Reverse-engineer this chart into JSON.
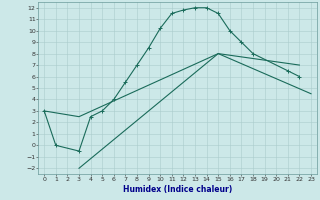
{
  "xlabel": "Humidex (Indice chaleur)",
  "bg_color": "#cce8e8",
  "grid_color": "#aacccc",
  "line_color": "#1a6b5a",
  "xlim": [
    -0.5,
    23.5
  ],
  "ylim": [
    -2.5,
    12.5
  ],
  "xticks": [
    0,
    1,
    2,
    3,
    4,
    5,
    6,
    7,
    8,
    9,
    10,
    11,
    12,
    13,
    14,
    15,
    16,
    17,
    18,
    19,
    20,
    21,
    22,
    23
  ],
  "yticks": [
    -2,
    -1,
    0,
    1,
    2,
    3,
    4,
    5,
    6,
    7,
    8,
    9,
    10,
    11,
    12
  ],
  "line1_x": [
    0,
    1,
    3,
    4,
    5,
    6,
    7,
    8,
    9,
    10,
    11,
    12,
    13,
    14,
    15,
    16,
    17,
    18,
    21,
    22
  ],
  "line1_y": [
    3,
    0,
    -0.5,
    2.5,
    3.0,
    4.0,
    5.5,
    7.0,
    8.5,
    10.2,
    11.5,
    11.8,
    12.0,
    12.0,
    11.5,
    10.0,
    9.0,
    8.0,
    6.5,
    6.0
  ],
  "line2_x": [
    0,
    3,
    15,
    22
  ],
  "line2_y": [
    3,
    2.5,
    8.0,
    7.0
  ],
  "line3_x": [
    3,
    15,
    23
  ],
  "line3_y": [
    -2,
    8.0,
    4.5
  ]
}
